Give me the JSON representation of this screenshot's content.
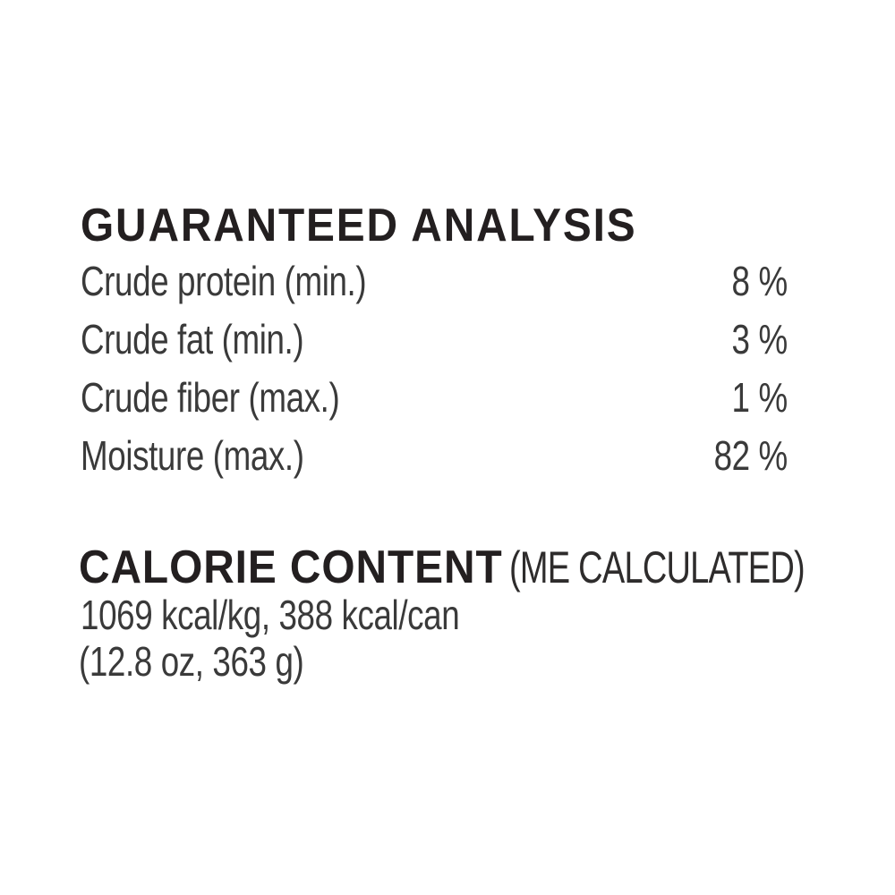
{
  "colors": {
    "background": "#ffffff",
    "heading_text": "#231f20",
    "body_text": "#3a3a3a"
  },
  "guaranteed_analysis": {
    "title": "GUARANTEED ANALYSIS",
    "rows": [
      {
        "label": "Crude protein (min.)",
        "value": "8 %"
      },
      {
        "label": "Crude fat (min.)",
        "value": "3 %"
      },
      {
        "label": "Crude fiber (max.)",
        "value": "1 %"
      },
      {
        "label": "Moisture (max.)",
        "value": "82 %"
      }
    ]
  },
  "calorie_content": {
    "title": "CALORIE CONTENT",
    "subtitle": "(ME CALCULATED)",
    "energy_line": "1069 kcal/kg, 388 kcal/can",
    "weight_line": "(12.8 oz, 363 g)"
  }
}
